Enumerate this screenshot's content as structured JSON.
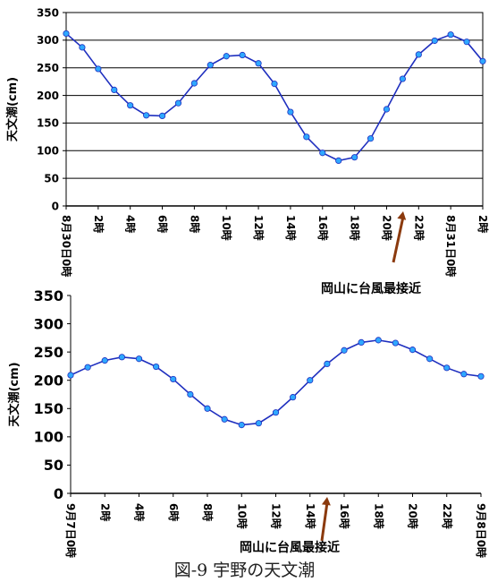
{
  "caption": "図-9 宇野の天文潮",
  "colors": {
    "line": "#1f2fbf",
    "marker_fill": "#2fa8ff",
    "arrow": "#8b3a0e",
    "grid": "#000000"
  },
  "chart_data": [
    {
      "type": "line",
      "title": "",
      "ylabel": "天文潮(cm)",
      "xlabel": "",
      "ylim": [
        0,
        350
      ],
      "yticks": [
        0,
        50,
        100,
        150,
        200,
        250,
        300,
        350
      ],
      "grid": true,
      "x": [
        0,
        1,
        2,
        3,
        4,
        5,
        6,
        7,
        8,
        9,
        10,
        11,
        12,
        13,
        14,
        15,
        16,
        17,
        18,
        19,
        20,
        21,
        22,
        23,
        24,
        25,
        26
      ],
      "xtick_positions": [
        0,
        2,
        4,
        6,
        8,
        10,
        12,
        14,
        16,
        18,
        20,
        22,
        24,
        26
      ],
      "xtick_labels": [
        "8月30日0時",
        "2時",
        "4時",
        "6時",
        "8時",
        "10時",
        "12時",
        "14時",
        "16時",
        "18時",
        "20時",
        "22時",
        "8月31日0時",
        "2時"
      ],
      "series": [
        {
          "values": [
            312,
            287,
            248,
            210,
            182,
            164,
            163,
            186,
            222,
            255,
            271,
            273,
            258,
            221,
            170,
            125,
            96,
            82,
            88,
            122,
            175,
            230,
            274,
            299,
            310,
            297,
            262
          ]
        }
      ],
      "annotation": {
        "text": "岡山に台風最接近",
        "x": 21
      }
    },
    {
      "type": "line",
      "title": "",
      "ylabel": "天文潮(cm)",
      "xlabel": "",
      "ylim": [
        0,
        350
      ],
      "yticks": [
        0,
        50,
        100,
        150,
        200,
        250,
        300,
        350
      ],
      "grid": false,
      "x": [
        0,
        1,
        2,
        3,
        4,
        5,
        6,
        7,
        8,
        9,
        10,
        11,
        12,
        13,
        14,
        15,
        16,
        17,
        18,
        19,
        20,
        21,
        22,
        23,
        24
      ],
      "xtick_positions": [
        0,
        2,
        4,
        6,
        8,
        10,
        12,
        14,
        16,
        18,
        20,
        22,
        24
      ],
      "xtick_labels": [
        "9月7日0時",
        "2時",
        "4時",
        "6時",
        "8時",
        "10時",
        "12時",
        "14時",
        "16時",
        "18時",
        "20時",
        "22時",
        "9月8日0時"
      ],
      "series": [
        {
          "values": [
            209,
            223,
            235,
            241,
            238,
            224,
            202,
            175,
            150,
            131,
            121,
            124,
            143,
            170,
            200,
            229,
            253,
            267,
            271,
            266,
            254,
            238,
            222,
            211,
            207
          ]
        }
      ],
      "annotation": {
        "text": "岡山に台風最接近",
        "x": 16
      }
    }
  ]
}
